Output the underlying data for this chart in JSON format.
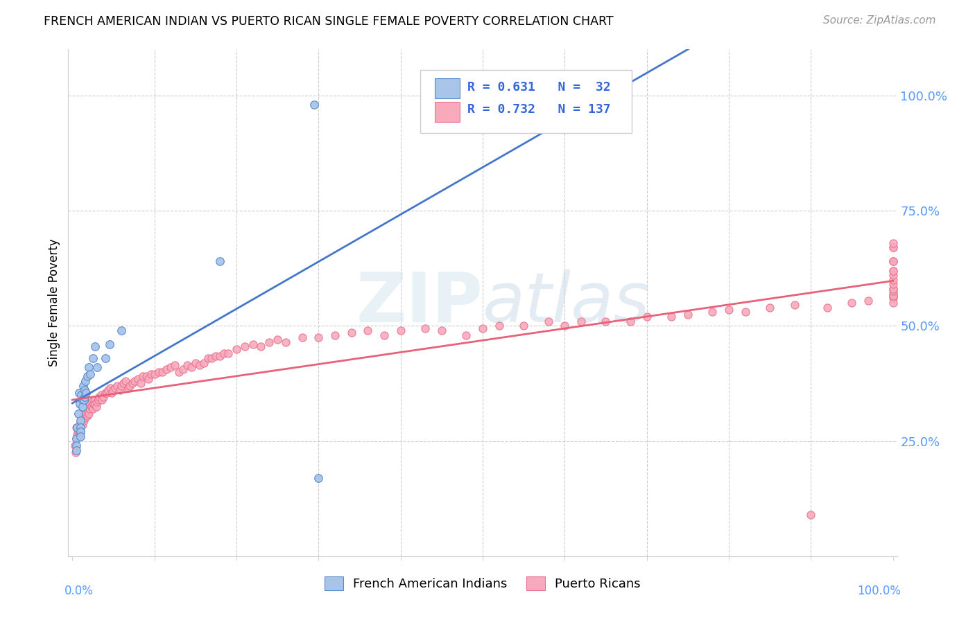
{
  "title": "FRENCH AMERICAN INDIAN VS PUERTO RICAN SINGLE FEMALE POVERTY CORRELATION CHART",
  "source": "Source: ZipAtlas.com",
  "ylabel": "Single Female Poverty",
  "watermark_zip": "ZIP",
  "watermark_atlas": "atlas",
  "blue_R": 0.631,
  "blue_N": 32,
  "pink_R": 0.732,
  "pink_N": 137,
  "blue_fill": "#A8C4E8",
  "blue_edge": "#5588CC",
  "pink_fill": "#F8AABC",
  "pink_edge": "#E87090",
  "blue_line": "#4477CC",
  "pink_line": "#E8607A",
  "legend_label_blue": "French American Indians",
  "legend_label_pink": "Puerto Ricans",
  "right_tick_color": "#5599FF",
  "blue_x": [
    0.005,
    0.005,
    0.005,
    0.006,
    0.007,
    0.008,
    0.009,
    0.01,
    0.01,
    0.01,
    0.01,
    0.011,
    0.012,
    0.012,
    0.013,
    0.014,
    0.015,
    0.015,
    0.016,
    0.017,
    0.018,
    0.02,
    0.022,
    0.025,
    0.028,
    0.03,
    0.04,
    0.045,
    0.06,
    0.18,
    0.295,
    0.3
  ],
  "blue_y": [
    0.255,
    0.24,
    0.23,
    0.28,
    0.31,
    0.355,
    0.33,
    0.295,
    0.28,
    0.27,
    0.26,
    0.35,
    0.34,
    0.325,
    0.37,
    0.34,
    0.36,
    0.345,
    0.38,
    0.355,
    0.39,
    0.41,
    0.395,
    0.43,
    0.455,
    0.41,
    0.43,
    0.46,
    0.49,
    0.64,
    0.98,
    0.17
  ],
  "pink_x": [
    0.003,
    0.004,
    0.005,
    0.005,
    0.006,
    0.007,
    0.008,
    0.008,
    0.009,
    0.01,
    0.01,
    0.01,
    0.011,
    0.012,
    0.012,
    0.013,
    0.014,
    0.015,
    0.015,
    0.016,
    0.017,
    0.018,
    0.019,
    0.02,
    0.02,
    0.021,
    0.022,
    0.023,
    0.024,
    0.025,
    0.026,
    0.027,
    0.028,
    0.029,
    0.03,
    0.032,
    0.033,
    0.035,
    0.036,
    0.038,
    0.04,
    0.042,
    0.044,
    0.046,
    0.048,
    0.05,
    0.052,
    0.055,
    0.058,
    0.06,
    0.062,
    0.065,
    0.068,
    0.07,
    0.073,
    0.076,
    0.08,
    0.083,
    0.086,
    0.09,
    0.093,
    0.096,
    0.1,
    0.105,
    0.11,
    0.115,
    0.12,
    0.125,
    0.13,
    0.135,
    0.14,
    0.145,
    0.15,
    0.155,
    0.16,
    0.165,
    0.17,
    0.175,
    0.18,
    0.185,
    0.19,
    0.2,
    0.21,
    0.22,
    0.23,
    0.24,
    0.25,
    0.26,
    0.28,
    0.3,
    0.32,
    0.34,
    0.36,
    0.38,
    0.4,
    0.43,
    0.45,
    0.48,
    0.5,
    0.52,
    0.55,
    0.58,
    0.6,
    0.62,
    0.65,
    0.68,
    0.7,
    0.73,
    0.75,
    0.78,
    0.8,
    0.82,
    0.85,
    0.88,
    0.9,
    0.92,
    0.95,
    0.97,
    1.0,
    1.0,
    1.0,
    1.0,
    1.0,
    1.0,
    1.0,
    1.0,
    1.0,
    1.0,
    1.0,
    1.0,
    1.0,
    1.0,
    1.0,
    1.0,
    1.0,
    1.0,
    1.0
  ],
  "pink_y": [
    0.24,
    0.225,
    0.28,
    0.255,
    0.265,
    0.27,
    0.26,
    0.275,
    0.265,
    0.29,
    0.28,
    0.27,
    0.295,
    0.3,
    0.285,
    0.305,
    0.295,
    0.31,
    0.3,
    0.315,
    0.31,
    0.305,
    0.315,
    0.325,
    0.31,
    0.32,
    0.33,
    0.325,
    0.335,
    0.32,
    0.33,
    0.34,
    0.33,
    0.325,
    0.335,
    0.34,
    0.345,
    0.35,
    0.34,
    0.345,
    0.355,
    0.355,
    0.36,
    0.365,
    0.355,
    0.36,
    0.365,
    0.37,
    0.36,
    0.37,
    0.375,
    0.38,
    0.365,
    0.37,
    0.375,
    0.38,
    0.385,
    0.375,
    0.39,
    0.39,
    0.385,
    0.395,
    0.395,
    0.4,
    0.4,
    0.405,
    0.41,
    0.415,
    0.4,
    0.405,
    0.415,
    0.41,
    0.42,
    0.415,
    0.42,
    0.43,
    0.43,
    0.435,
    0.435,
    0.44,
    0.44,
    0.45,
    0.455,
    0.46,
    0.455,
    0.465,
    0.47,
    0.465,
    0.475,
    0.475,
    0.48,
    0.485,
    0.49,
    0.48,
    0.49,
    0.495,
    0.49,
    0.48,
    0.495,
    0.5,
    0.5,
    0.51,
    0.5,
    0.51,
    0.51,
    0.51,
    0.52,
    0.52,
    0.525,
    0.53,
    0.535,
    0.53,
    0.54,
    0.545,
    0.09,
    0.54,
    0.55,
    0.555,
    0.56,
    0.55,
    0.565,
    0.57,
    0.58,
    0.565,
    0.575,
    0.58,
    0.59,
    0.6,
    0.61,
    0.62,
    0.62,
    0.64,
    0.64,
    0.64,
    0.67,
    0.67,
    0.68
  ]
}
